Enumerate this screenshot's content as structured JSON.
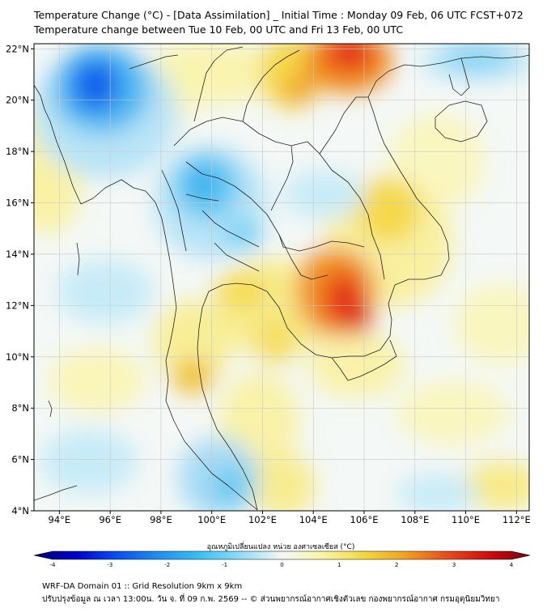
{
  "header": {
    "title_line1": "Temperature Change (°C) - [Data Assimilation] _ Initial Time : Monday 09 Feb, 06 UTC FCST+072",
    "title_line2": "Temperature change between Tue 10 Feb, 00 UTC and Fri 13 Feb, 00 UTC"
  },
  "map": {
    "lon_range": [
      93,
      112.5
    ],
    "lat_range": [
      4,
      22.2
    ],
    "lon_ticks": [
      {
        "value": 94,
        "label": "94°E"
      },
      {
        "value": 96,
        "label": "96°E"
      },
      {
        "value": 98,
        "label": "98°E"
      },
      {
        "value": 100,
        "label": "100°E"
      },
      {
        "value": 102,
        "label": "102°E"
      },
      {
        "value": 104,
        "label": "104°E"
      },
      {
        "value": 106,
        "label": "106°E"
      },
      {
        "value": 108,
        "label": "108°E"
      },
      {
        "value": 110,
        "label": "110°E"
      },
      {
        "value": 112,
        "label": "112°E"
      }
    ],
    "lat_ticks": [
      {
        "value": 4,
        "label": "4°N"
      },
      {
        "value": 6,
        "label": "6°N"
      },
      {
        "value": 8,
        "label": "8°N"
      },
      {
        "value": 10,
        "label": "10°N"
      },
      {
        "value": 12,
        "label": "12°N"
      },
      {
        "value": 14,
        "label": "14°N"
      },
      {
        "value": 16,
        "label": "16°N"
      },
      {
        "value": 18,
        "label": "18°N"
      },
      {
        "value": 20,
        "label": "20°N"
      },
      {
        "value": 22,
        "label": "22°N"
      }
    ],
    "grid": true,
    "field_colors": {
      "strong_cool": "#0a4ff0",
      "cool": "#36b3f0",
      "light_cool": "#aee0f7",
      "neutral": "#f4f8f6",
      "light_warm": "#faf6b4",
      "warm": "#f3d83c",
      "hot": "#f08a1c",
      "very_hot": "#e4241a"
    }
  },
  "colorbar": {
    "title": "อุณหภูมิเปลี่ยนแปลง หน่วย องศาเซลเซียส (°C)",
    "min": -4,
    "max": 4,
    "tick_labels": [
      "-4",
      "-3",
      "-2",
      "-1",
      "0",
      "1",
      "2",
      "3",
      "4"
    ],
    "colors": [
      "#00006e",
      "#0000c8",
      "#0a4ff0",
      "#1e8ef0",
      "#36c2f5",
      "#8fdcf7",
      "#f4f8f6",
      "#f9f5a0",
      "#f3d83c",
      "#f0a020",
      "#e84c18",
      "#d00c10",
      "#7a0008"
    ]
  },
  "footer": {
    "line1": "WRF-DA Domain 01 :: Grid Resolution 9km x 9km",
    "line2": "ปรับปรุงข้อมูล ณ เวลา 13:00น. วัน จ. ที่ 09 ก.พ. 2569 -- © ส่วนพยากรณ์อากาศเชิงตัวเลข กองพยากรณ์อากาศ กรมอุตุนิยมวิทยา"
  }
}
